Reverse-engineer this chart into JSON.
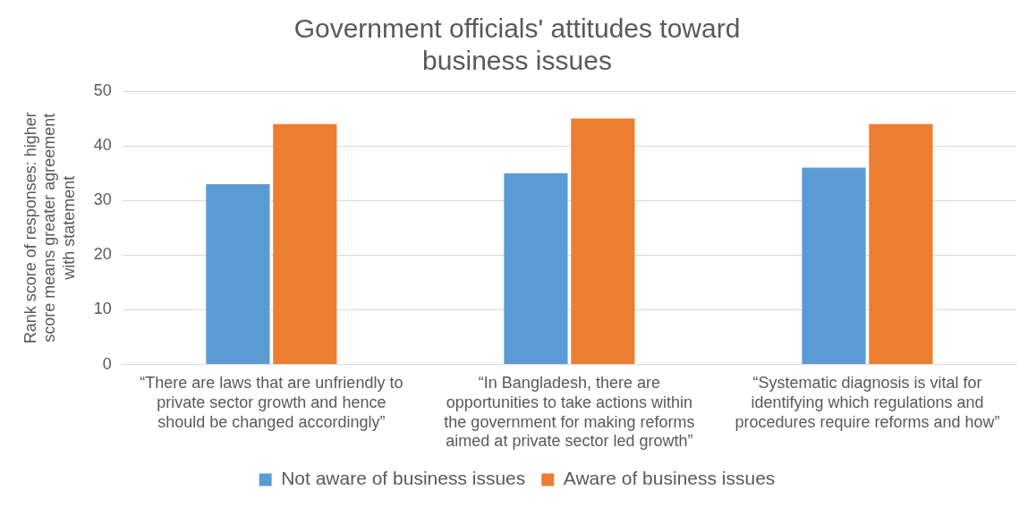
{
  "chart_data": {
    "type": "bar",
    "title": "Government officials' attitudes toward business issues",
    "ylabel": "Rank score of responses: higher score means greater agreement with statement",
    "categories": [
      "“There are laws that are unfriendly to private sector growth and hence should be changed accordingly”",
      "“In Bangladesh, there are opportunities to take actions within the government for making reforms aimed at private sector led growth”",
      "“Systematic diagnosis is vital for identifying which regulations and procedures require reforms and how”"
    ],
    "series": [
      {
        "name": "Not aware of business issues",
        "color": "#5b9bd5",
        "values": [
          33,
          35,
          36
        ]
      },
      {
        "name": "Aware of business issues",
        "color": "#ed7d31",
        "values": [
          44,
          45,
          44
        ]
      }
    ],
    "ylim": [
      0,
      50
    ],
    "yticks": [
      0,
      10,
      20,
      30,
      40,
      50
    ],
    "grid": "y",
    "legend": "bottom"
  }
}
